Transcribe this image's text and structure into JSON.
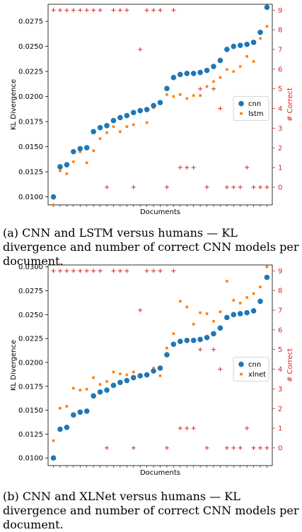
{
  "chart_data": [
    {
      "type": "scatter",
      "xlabel": "Documents",
      "ylabel": "KL Divergence",
      "y2label": "# Correct",
      "ylim": [
        0.0092,
        0.0292
      ],
      "y2lim": [
        -0.9,
        9.3
      ],
      "yticks": [
        "0.0100",
        "0.0125",
        "0.0150",
        "0.0175",
        "0.0200",
        "0.0225",
        "0.0250",
        "0.0275"
      ],
      "ytick_values": [
        0.01,
        0.0125,
        0.015,
        0.0175,
        0.02,
        0.0225,
        0.025,
        0.0275
      ],
      "y2ticks": [
        "0",
        "1",
        "2",
        "3",
        "4",
        "5",
        "6",
        "7",
        "8",
        "9"
      ],
      "y2tick_values": [
        0,
        1,
        2,
        3,
        4,
        5,
        6,
        7,
        8,
        9
      ],
      "legend_placement": "right",
      "color_primary": "#1f77b4",
      "color_secondary": "#ff7f0e",
      "color_correct": "#d62728",
      "series": [
        {
          "name": "cnn",
          "axis": "left",
          "marker": "circle",
          "color": "#1f77b4",
          "values": [
            0.01,
            0.013,
            0.0132,
            0.0145,
            0.0148,
            0.0149,
            0.0165,
            0.0169,
            0.0171,
            0.0176,
            0.0179,
            0.0181,
            0.0184,
            0.0186,
            0.0187,
            0.0191,
            0.0194,
            0.0208,
            0.0219,
            0.0222,
            0.0223,
            0.0223,
            0.0224,
            0.0226,
            0.023,
            0.0236,
            0.0247,
            0.025,
            0.0251,
            0.0252,
            0.0254,
            0.0264,
            0.0289
          ]
        },
        {
          "name": "lstm",
          "axis": "left",
          "marker": "square",
          "color": "#ff7f0e",
          "values": [
            0.0092,
            0.0126,
            0.0123,
            0.0135,
            0.0145,
            0.0134,
            0.0146,
            0.0158,
            0.0164,
            0.017,
            0.0165,
            0.017,
            0.0172,
            0.0186,
            0.0174,
            0.0189,
            0.0193,
            0.0202,
            0.02,
            0.0202,
            0.0198,
            0.0201,
            0.0201,
            0.021,
            0.0215,
            0.0219,
            0.0227,
            0.0225,
            0.023,
            0.024,
            0.0235,
            0.0258,
            0.027
          ]
        }
      ],
      "correct_counts": [
        9,
        9,
        9,
        9,
        9,
        9,
        9,
        9,
        0,
        9,
        9,
        9,
        0,
        7,
        9,
        9,
        9,
        0,
        9,
        1,
        1,
        1,
        5,
        0,
        5,
        4,
        0,
        0,
        0,
        1,
        0,
        0,
        0
      ]
    },
    {
      "type": "scatter",
      "xlabel": "Documents",
      "ylabel": "KL Divergence",
      "y2label": "# Correct",
      "ylim": [
        0.0092,
        0.0302
      ],
      "y2lim": [
        -0.9,
        9.3
      ],
      "yticks": [
        "0.0100",
        "0.0125",
        "0.0150",
        "0.0175",
        "0.0200",
        "0.0225",
        "0.0250",
        "0.0275",
        "0.0300"
      ],
      "ytick_values": [
        0.01,
        0.0125,
        0.015,
        0.0175,
        0.02,
        0.0225,
        0.025,
        0.0275,
        0.03
      ],
      "y2ticks": [
        "0",
        "1",
        "2",
        "3",
        "4",
        "5",
        "6",
        "7",
        "8",
        "9"
      ],
      "y2tick_values": [
        0,
        1,
        2,
        3,
        4,
        5,
        6,
        7,
        8,
        9
      ],
      "legend_placement": "right",
      "color_primary": "#1f77b4",
      "color_secondary": "#ff7f0e",
      "color_correct": "#d62728",
      "series": [
        {
          "name": "cnn",
          "axis": "left",
          "marker": "circle",
          "color": "#1f77b4",
          "values": [
            0.01,
            0.013,
            0.0132,
            0.0145,
            0.0148,
            0.0149,
            0.0165,
            0.0169,
            0.0171,
            0.0176,
            0.0179,
            0.0181,
            0.0184,
            0.0186,
            0.0187,
            0.0191,
            0.0194,
            0.0208,
            0.0219,
            0.0222,
            0.0223,
            0.0223,
            0.0224,
            0.0226,
            0.023,
            0.0236,
            0.0247,
            0.025,
            0.0251,
            0.0252,
            0.0254,
            0.0264,
            0.0289
          ]
        },
        {
          "name": "xlnet",
          "axis": "left",
          "marker": "square",
          "color": "#ff7f0e",
          "values": [
            0.0118,
            0.0152,
            0.0154,
            0.0173,
            0.0171,
            0.0172,
            0.0184,
            0.0177,
            0.018,
            0.019,
            0.0188,
            0.0187,
            0.019,
            0.0187,
            0.0188,
            0.0194,
            0.0186,
            0.0215,
            0.023,
            0.0264,
            0.0258,
            0.024,
            0.0252,
            0.0251,
            0.0243,
            0.0253,
            0.0285,
            0.0265,
            0.0262,
            0.0268,
            0.0272,
            0.0279,
            0.03
          ]
        }
      ],
      "correct_counts": [
        9,
        9,
        9,
        9,
        9,
        9,
        9,
        9,
        0,
        9,
        9,
        9,
        0,
        7,
        9,
        9,
        9,
        0,
        9,
        1,
        1,
        1,
        5,
        0,
        5,
        4,
        0,
        0,
        0,
        1,
        0,
        0,
        0
      ]
    }
  ],
  "captions": {
    "a": "(a) CNN and LSTM versus humans — KL divergence and number of correct CNN models per document.",
    "b": "(b) CNN and XLNet versus humans — KL divergence and number of correct CNN models per document."
  }
}
